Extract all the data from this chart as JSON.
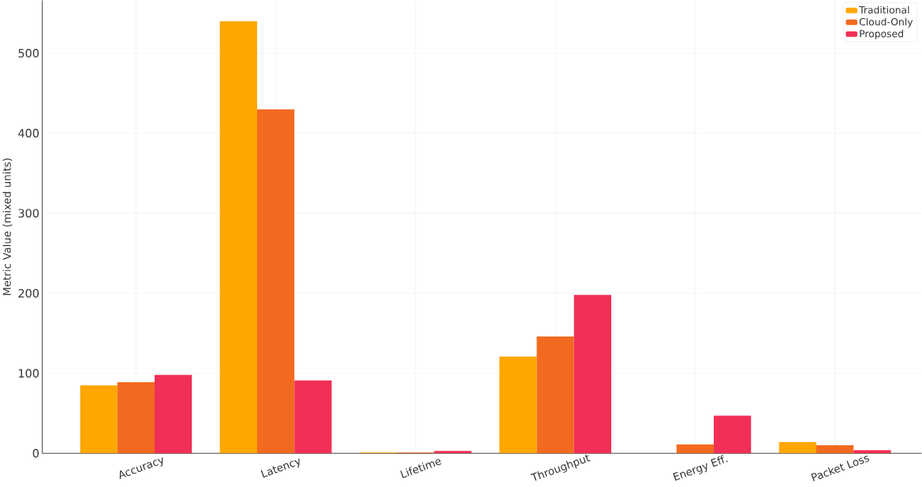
{
  "chart_data": {
    "type": "bar",
    "ylabel": "Metric Value (mixed units)",
    "categories": [
      "Accuracy",
      "Latency",
      "Lifetime",
      "Throughput",
      "Energy Eff.",
      "Packet Loss"
    ],
    "series": [
      {
        "name": "Traditional",
        "color": "#ffa600",
        "values": [
          85,
          540,
          1,
          121,
          0,
          14
        ]
      },
      {
        "name": "Cloud-Only",
        "color": "#f26a1f",
        "values": [
          89,
          430,
          1,
          146,
          11,
          10
        ]
      },
      {
        "name": "Proposed",
        "color": "#f22f56",
        "values": [
          98,
          91,
          3,
          198,
          47,
          4
        ]
      }
    ],
    "ylim": [
      0,
      566
    ],
    "yticks": [
      0,
      100,
      200,
      300,
      400,
      500
    ],
    "grid": true,
    "legend": "top right"
  }
}
